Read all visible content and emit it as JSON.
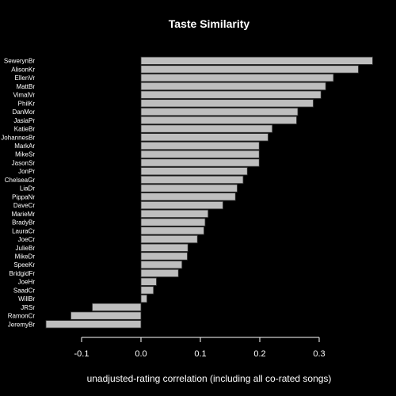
{
  "chart_data": {
    "type": "bar",
    "orientation": "horizontal",
    "title": "Taste Similarity",
    "xlabel": "unadjusted-rating correlation (including all co-rated songs)",
    "ylabel": "",
    "xlim": [
      -0.16,
      0.39
    ],
    "xticks": [
      -0.1,
      0.0,
      0.1,
      0.2,
      0.3
    ],
    "xtick_labels": [
      "-0.1",
      "0.0",
      "0.1",
      "0.2",
      "0.3"
    ],
    "grid": false,
    "categories": [
      "SewerynBr",
      "AlisonKr",
      "EllenVr",
      "MattBr",
      "VimalVr",
      "PhilKr",
      "DanMor",
      "JasiaPr",
      "KatieBr",
      "JohannesBr",
      "MarkAr",
      "MikeSr",
      "JasonSr",
      "JonPr",
      "ChelseaGr",
      "LiaDr",
      "PippaNr",
      "DaveCr",
      "MarieMr",
      "BradyBr",
      "LauraCr",
      "JoeCr",
      "JulieBr",
      "MikeDr",
      "SpeeKr",
      "BridgidFr",
      "JoeHr",
      "SaadCr",
      "WillBr",
      "JRSr",
      "RamonCr",
      "JeremyBr"
    ],
    "values": [
      0.39,
      0.366,
      0.324,
      0.311,
      0.303,
      0.29,
      0.264,
      0.262,
      0.221,
      0.214,
      0.199,
      0.199,
      0.199,
      0.179,
      0.172,
      0.162,
      0.159,
      0.138,
      0.113,
      0.108,
      0.106,
      0.095,
      0.079,
      0.078,
      0.069,
      0.063,
      0.026,
      0.021,
      0.01,
      -0.082,
      -0.118,
      -0.16
    ],
    "colors": {
      "bar_fill": "#bebebe",
      "background": "#000000",
      "text": "#ffffff"
    }
  }
}
